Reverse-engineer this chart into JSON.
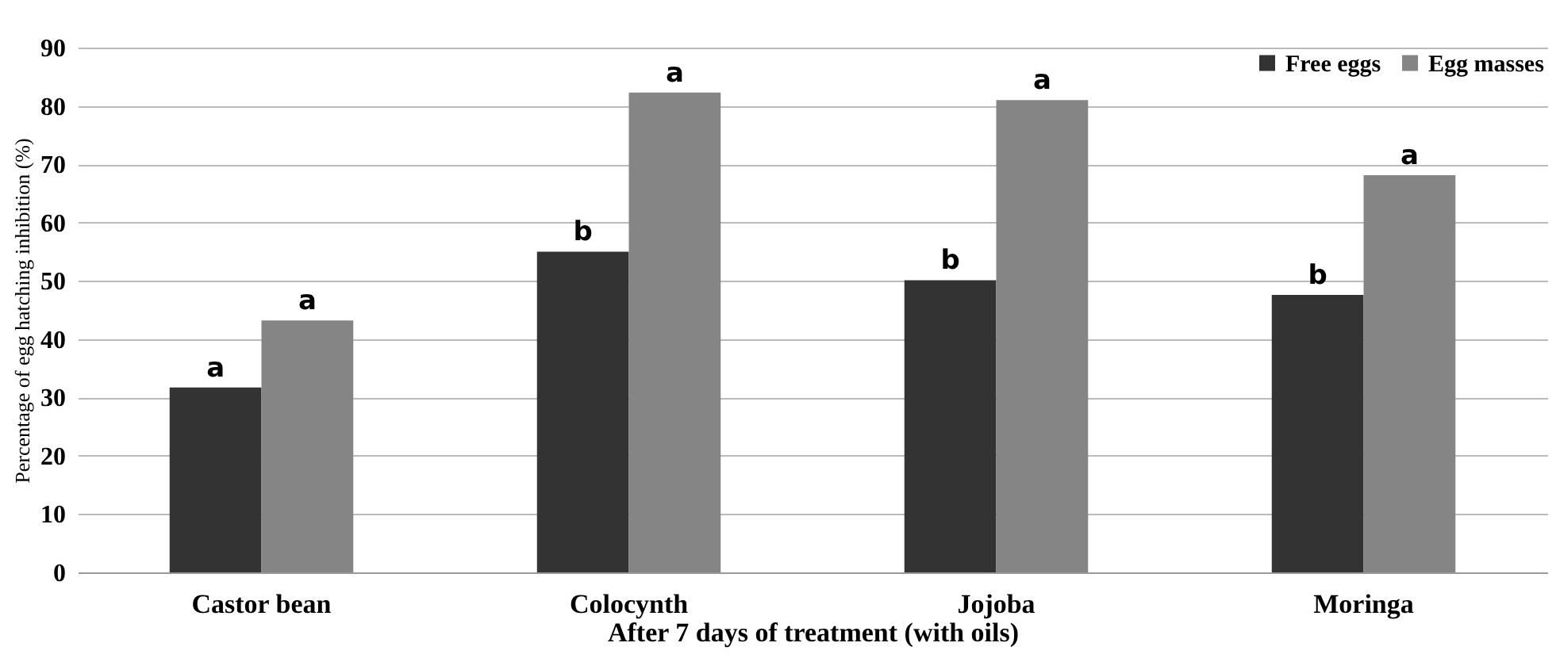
{
  "chart_data": {
    "type": "bar",
    "xlabel": "After 7 days of treatment (with oils)",
    "ylabel": "Percentage of egg hatching inhibition (%)",
    "categories": [
      "Castor bean",
      "Colocynth",
      "Jojoba",
      "Moringa"
    ],
    "series": [
      {
        "name": "Free eggs",
        "color": "#333333",
        "values": [
          31.7,
          55.0,
          50.1,
          47.6
        ]
      },
      {
        "name": "Egg masses",
        "color": "#858585",
        "values": [
          43.2,
          82.3,
          81.0,
          68.1
        ]
      }
    ],
    "ylim": [
      0,
      90
    ],
    "yticks": [
      0,
      10,
      20,
      30,
      40,
      50,
      60,
      70,
      80,
      90
    ],
    "grid": "y",
    "legend": "top right",
    "annotations": [
      "a",
      "a",
      "b",
      "a",
      "b",
      "a",
      "b",
      "a"
    ]
  }
}
